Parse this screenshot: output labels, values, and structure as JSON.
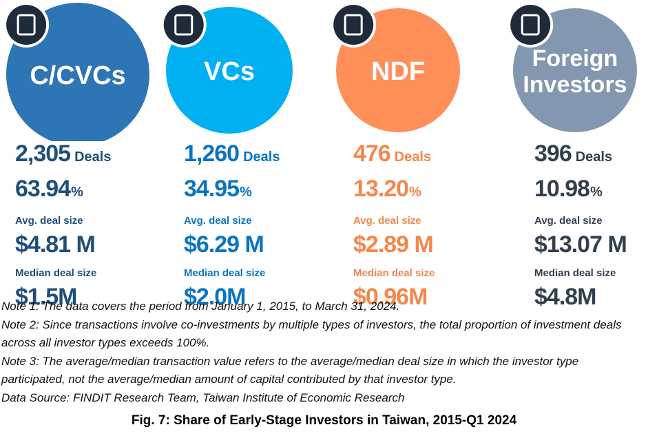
{
  "columns": [
    {
      "label": "C/CVCs",
      "deals": "2,305",
      "deals_unit": "Deals",
      "share": "63.94",
      "share_unit": "%",
      "avg_label": "Avg. deal size",
      "avg": "$4.81 M",
      "median_label": "Median deal size",
      "median": "$1.5M",
      "color": "#2e75b6",
      "text_color": "#1f4e79"
    },
    {
      "label": "VCs",
      "deals": "1,260",
      "deals_unit": "Deals",
      "share": "34.95",
      "share_unit": "%",
      "avg_label": "Avg. deal size",
      "avg": "$6.29 M",
      "median_label": "Median deal size",
      "median": "$2.0M",
      "color": "#00b0f0",
      "text_color": "#0a74c2"
    },
    {
      "label": "NDF",
      "deals": "476",
      "deals_unit": "Deals",
      "share": "13.20",
      "share_unit": "%",
      "avg_label": "Avg. deal size",
      "avg": "$2.89 M",
      "median_label": "Median deal size",
      "median": "$0.96M",
      "color": "#ff8f59",
      "text_color": "#f4874b"
    },
    {
      "label": "Foreign Investors",
      "deals": "396",
      "deals_unit": "Deals",
      "share": "10.98",
      "share_unit": "%",
      "avg_label": "Avg. deal size",
      "avg": "$13.07 M",
      "median_label": "Median deal size",
      "median": "$4.8M",
      "color": "#8497b0",
      "text_color": "#323f4f"
    }
  ],
  "notes": [
    "Note 1: The data covers the period from January 1, 2015, to March 31, 2024.",
    "Note 2: Since transactions involve co-investments by multiple types of investors, the total proportion of investment deals across all investor types exceeds 100%.",
    "Note 3: The average/median transaction value refers to the average/median deal size in which the investor type participated, not the average/median amount of capital contributed by that investor type.",
    "Data Source: FINDIT Research Team, Taiwan Institute of Economic Research"
  ],
  "caption": "Fig. 7: Share of Early-Stage Investors in Taiwan, 2015-Q1 2024"
}
